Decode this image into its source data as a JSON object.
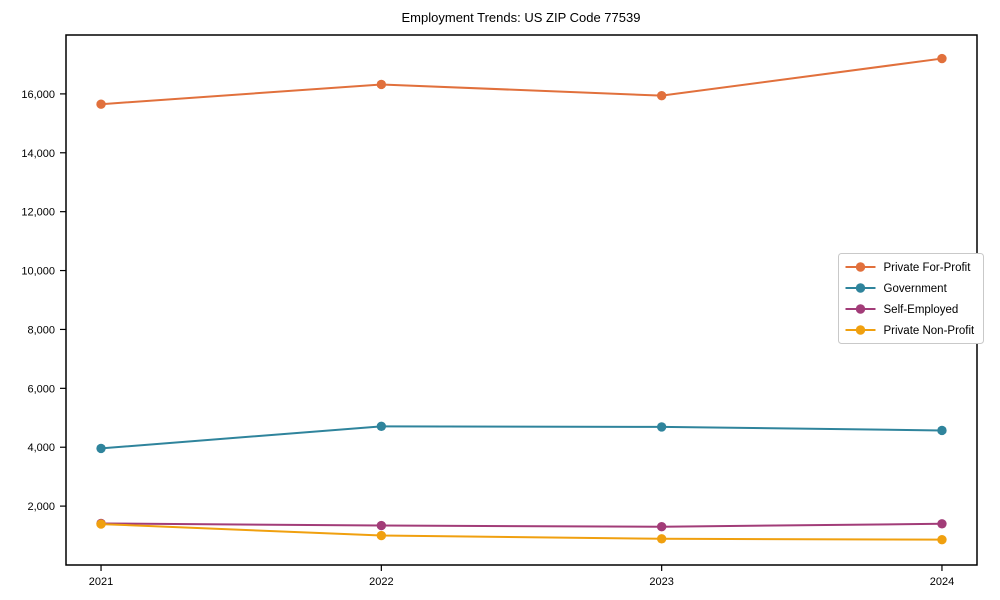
{
  "figure": {
    "title": "Employment Trends: US ZIP Code 77539"
  },
  "chart_data": {
    "type": "line",
    "title": "Employment Trends: US ZIP Code 77539",
    "xlabel": "",
    "ylabel": "",
    "grid": false,
    "background_color": "#ffffff",
    "axis_color": "#000000",
    "x": [
      2021,
      2022,
      2023,
      2024
    ],
    "x_tick_labels": [
      "2021",
      "2022",
      "2023",
      "2024"
    ],
    "xlim": [
      2020.875,
      2024.125
    ],
    "ylim": [
      0,
      18000
    ],
    "y_ticks": [
      2000,
      4000,
      6000,
      8000,
      10000,
      12000,
      14000,
      16000
    ],
    "y_tick_labels": [
      "2,000",
      "4,000",
      "6,000",
      "8,000",
      "10,000",
      "12,000",
      "14,000",
      "16,000"
    ],
    "marker": "circle",
    "series": [
      {
        "name": "Private For-Profit",
        "color": "#e1703c",
        "values": [
          15650,
          16320,
          15940,
          17200
        ]
      },
      {
        "name": "Government",
        "color": "#2f849c",
        "values": [
          3960,
          4710,
          4690,
          4570
        ]
      },
      {
        "name": "Self-Employed",
        "color": "#a23c78",
        "values": [
          1410,
          1340,
          1300,
          1400
        ]
      },
      {
        "name": "Private Non-Profit",
        "color": "#f0a00f",
        "values": [
          1390,
          1000,
          890,
          860
        ]
      }
    ],
    "legend": {
      "position": "center-right",
      "border_color": "#c9c9c9",
      "items": [
        "Private For-Profit",
        "Government",
        "Self-Employed",
        "Private Non-Profit"
      ]
    }
  }
}
